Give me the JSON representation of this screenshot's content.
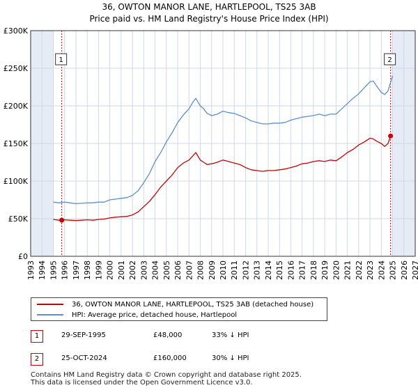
{
  "title_line1": "36, OWTON MANOR LANE, HARTLEPOOL, TS25 3AB",
  "title_line2": "Price paid vs. HM Land Registry's House Price Index (HPI)",
  "colors": {
    "red": "#cc0000",
    "blue": "#5b8fd0",
    "shade": "#e6ecf6",
    "grid": "#cfd8e6",
    "axis": "#333333"
  },
  "chart_data": {
    "type": "line",
    "title": "Price paid vs. HM Land Registry's House Price Index (HPI)",
    "xlabel": "",
    "ylabel": "",
    "xlim": [
      1993.0,
      2027.0
    ],
    "ylim": [
      0,
      300000
    ],
    "y_ticks": [
      {
        "value": 0,
        "label": "£0"
      },
      {
        "value": 50000,
        "label": "£50K"
      },
      {
        "value": 100000,
        "label": "£100K"
      },
      {
        "value": 150000,
        "label": "£150K"
      },
      {
        "value": 200000,
        "label": "£200K"
      },
      {
        "value": 250000,
        "label": "£250K"
      },
      {
        "value": 300000,
        "label": "£300K"
      }
    ],
    "x_ticks": [
      "1993",
      "1994",
      "1995",
      "1996",
      "1997",
      "1998",
      "1999",
      "2000",
      "2001",
      "2002",
      "2003",
      "2004",
      "2005",
      "2006",
      "2007",
      "2008",
      "2009",
      "2010",
      "2011",
      "2012",
      "2013",
      "2014",
      "2015",
      "2016",
      "2017",
      "2018",
      "2019",
      "2020",
      "2021",
      "2022",
      "2023",
      "2024",
      "2025",
      "2026",
      "2027"
    ],
    "shaded_before": 1995.0,
    "shaded_after": 2024.92,
    "series": [
      {
        "name": "36, OWTON MANOR LANE, HARTLEPOOL, TS25 3AB (detached house)",
        "color": "#cc0000",
        "x": [
          1995.0,
          1995.5,
          1995.75,
          1996.0,
          1996.5,
          1997.0,
          1997.5,
          1998.0,
          1998.5,
          1999.0,
          1999.5,
          2000.0,
          2000.5,
          2001.0,
          2001.5,
          2002.0,
          2002.5,
          2003.0,
          2003.5,
          2004.0,
          2004.5,
          2005.0,
          2005.5,
          2006.0,
          2006.5,
          2007.0,
          2007.3,
          2007.6,
          2008.0,
          2008.3,
          2008.6,
          2009.0,
          2009.5,
          2010.0,
          2010.5,
          2011.0,
          2011.5,
          2012.0,
          2012.5,
          2013.0,
          2013.5,
          2014.0,
          2014.5,
          2015.0,
          2015.5,
          2016.0,
          2016.5,
          2017.0,
          2017.5,
          2018.0,
          2018.5,
          2019.0,
          2019.5,
          2020.0,
          2020.5,
          2021.0,
          2021.5,
          2022.0,
          2022.5,
          2023.0,
          2023.3,
          2023.6,
          2024.0,
          2024.3,
          2024.6,
          2024.82
        ],
        "values": [
          49000,
          48000,
          48000,
          48500,
          48000,
          47500,
          48000,
          48500,
          48000,
          49000,
          49500,
          51000,
          52000,
          52500,
          53000,
          55000,
          59000,
          66000,
          73000,
          82000,
          92000,
          100000,
          108000,
          118000,
          124000,
          128000,
          133000,
          138000,
          128000,
          125000,
          122000,
          123000,
          125000,
          128000,
          126000,
          124000,
          122000,
          118000,
          115000,
          114000,
          113000,
          114000,
          114000,
          115000,
          116000,
          118000,
          120000,
          123000,
          124000,
          126000,
          127000,
          126000,
          128000,
          127000,
          132000,
          138000,
          142000,
          148000,
          152000,
          157000,
          156000,
          153000,
          150000,
          146000,
          150000,
          160000
        ]
      },
      {
        "name": "HPI: Average price, detached house, Hartlepool",
        "color": "#5b8fd0",
        "x": [
          1995.0,
          1995.5,
          1996.0,
          1996.5,
          1997.0,
          1997.5,
          1998.0,
          1998.5,
          1999.0,
          1999.5,
          2000.0,
          2000.5,
          2001.0,
          2001.5,
          2002.0,
          2002.5,
          2003.0,
          2003.5,
          2004.0,
          2004.5,
          2005.0,
          2005.5,
          2006.0,
          2006.5,
          2007.0,
          2007.3,
          2007.6,
          2008.0,
          2008.3,
          2008.6,
          2009.0,
          2009.5,
          2010.0,
          2010.5,
          2011.0,
          2011.5,
          2012.0,
          2012.5,
          2013.0,
          2013.5,
          2014.0,
          2014.5,
          2015.0,
          2015.5,
          2016.0,
          2016.5,
          2017.0,
          2017.5,
          2018.0,
          2018.5,
          2019.0,
          2019.5,
          2020.0,
          2020.5,
          2021.0,
          2021.5,
          2022.0,
          2022.5,
          2023.0,
          2023.3,
          2023.6,
          2024.0,
          2024.3,
          2024.6,
          2025.0
        ],
        "values": [
          72000,
          71000,
          72000,
          71000,
          70000,
          70500,
          71000,
          71000,
          72000,
          72000,
          75000,
          76000,
          77000,
          78000,
          81000,
          87000,
          98000,
          110000,
          126000,
          138000,
          152000,
          164000,
          178000,
          188000,
          196000,
          204000,
          210000,
          200000,
          196000,
          190000,
          187000,
          189000,
          193000,
          191000,
          190000,
          187000,
          184000,
          180000,
          178000,
          176000,
          176000,
          177000,
          177000,
          178000,
          181000,
          183000,
          185000,
          186000,
          187000,
          189000,
          187000,
          189000,
          189000,
          196000,
          203000,
          210000,
          216000,
          224000,
          232000,
          233000,
          226000,
          218000,
          215000,
          220000,
          240000
        ]
      }
    ],
    "annotations": [
      {
        "id": "1",
        "x": 1995.75,
        "price": 48000
      },
      {
        "id": "2",
        "x": 2024.82,
        "price": 160000
      }
    ]
  },
  "legend": {
    "red_label": "36, OWTON MANOR LANE, HARTLEPOOL, TS25 3AB (detached house)",
    "blue_label": "HPI: Average price, detached house, Hartlepool"
  },
  "transactions": [
    {
      "id": "1",
      "date": "29-SEP-1995",
      "price": "£48,000",
      "hpi": "33% ↓ HPI"
    },
    {
      "id": "2",
      "date": "25-OCT-2024",
      "price": "£160,000",
      "hpi": "30% ↓ HPI"
    }
  ],
  "footer": {
    "line1": "Contains HM Land Registry data © Crown copyright and database right 2025.",
    "line2": "This data is licensed under the Open Government Licence v3.0."
  }
}
